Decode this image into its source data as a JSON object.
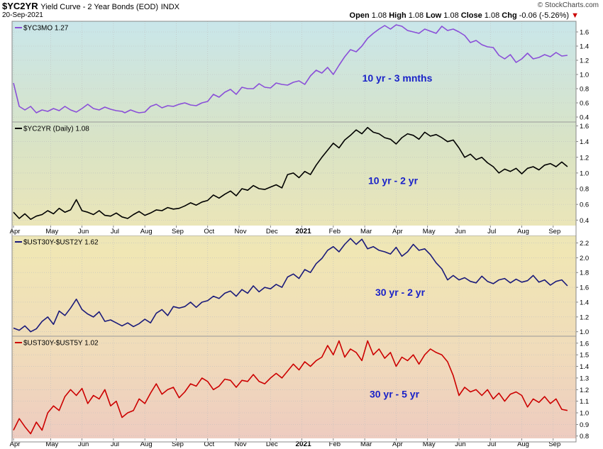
{
  "header": {
    "symbol": "$YC2YR",
    "description": "Yield Curve - 2 Year Bonds (EOD)",
    "exchange": "INDX",
    "date": "20-Sep-2021",
    "brand": "© StockCharts.com",
    "open_label": "Open",
    "open": "1.08",
    "high_label": "High",
    "high": "1.08",
    "low_label": "Low",
    "low": "1.08",
    "close_label": "Close",
    "close": "1.08",
    "chg_label": "Chg",
    "chg": "-0.06 (-5.26%)",
    "chg_arrow": "▼"
  },
  "colors": {
    "yc3mo": "#8a4fd8",
    "yc2yr": "#000000",
    "ust30y2y": "#1a1a7a",
    "ust30y5y": "#cc0000",
    "note": "#1a22c8"
  },
  "chart_data": [
    {
      "type": "line",
      "title": "$YC3MO 1.27",
      "annotation": "10 yr - 3 mnths",
      "yticks": [
        0.4,
        0.6,
        0.8,
        1.0,
        1.2,
        1.4,
        1.6
      ],
      "ylim": [
        0.33,
        1.75
      ],
      "series": [
        {
          "x": [
            0,
            4,
            8,
            12,
            16,
            20,
            24,
            28,
            32,
            36,
            40,
            44,
            48,
            52,
            56,
            60,
            64,
            68,
            72,
            76,
            78,
            82,
            86,
            88,
            92,
            96,
            100,
            104,
            108,
            112,
            116,
            120,
            124,
            128,
            132,
            136,
            140,
            144,
            148,
            152,
            156,
            160,
            164,
            168,
            172,
            176,
            180,
            184,
            188,
            192,
            196,
            200,
            204,
            208,
            212,
            216,
            220,
            224,
            228,
            232,
            236,
            240,
            244,
            248,
            252,
            256,
            260,
            264,
            268,
            272,
            276,
            280,
            284,
            288,
            292,
            296,
            300,
            304,
            308,
            312,
            316,
            320,
            324,
            328,
            332,
            336,
            340,
            344,
            348,
            352,
            356,
            360,
            364,
            368,
            372,
            376,
            380,
            384,
            388
          ],
          "values": [
            0.88,
            0.55,
            0.5,
            0.55,
            0.46,
            0.5,
            0.48,
            0.52,
            0.49,
            0.55,
            0.5,
            0.47,
            0.52,
            0.58,
            0.52,
            0.5,
            0.54,
            0.51,
            0.49,
            0.48,
            0.46,
            0.5,
            0.47,
            0.46,
            0.47,
            0.55,
            0.58,
            0.53,
            0.56,
            0.55,
            0.58,
            0.6,
            0.57,
            0.56,
            0.6,
            0.62,
            0.72,
            0.68,
            0.75,
            0.79,
            0.72,
            0.82,
            0.8,
            0.8,
            0.87,
            0.82,
            0.81,
            0.88,
            0.86,
            0.85,
            0.89,
            0.91,
            0.86,
            0.98,
            1.06,
            1.02,
            1.1,
            1.0,
            1.13,
            1.25,
            1.35,
            1.32,
            1.4,
            1.51,
            1.58,
            1.64,
            1.69,
            1.64,
            1.7,
            1.68,
            1.62,
            1.6,
            1.58,
            1.64,
            1.61,
            1.58,
            1.68,
            1.62,
            1.64,
            1.6,
            1.55,
            1.45,
            1.48,
            1.42,
            1.39,
            1.38,
            1.27,
            1.22,
            1.28,
            1.17,
            1.22,
            1.3,
            1.22,
            1.24,
            1.28,
            1.25,
            1.31,
            1.26,
            1.27
          ]
        }
      ]
    },
    {
      "type": "line",
      "title": "$YC2YR (Daily) 1.08",
      "annotation": "10 yr - 2 yr",
      "yticks": [
        0.4,
        0.6,
        0.8,
        1.0,
        1.2,
        1.4,
        1.6
      ],
      "ylim": [
        0.33,
        1.65
      ],
      "series": [
        {
          "x": [
            0,
            4,
            8,
            12,
            16,
            20,
            24,
            28,
            32,
            36,
            40,
            44,
            48,
            52,
            56,
            60,
            64,
            68,
            72,
            76,
            80,
            84,
            88,
            92,
            96,
            100,
            104,
            108,
            112,
            116,
            120,
            124,
            128,
            132,
            136,
            140,
            144,
            148,
            152,
            156,
            160,
            164,
            168,
            172,
            176,
            180,
            184,
            188,
            192,
            196,
            200,
            204,
            208,
            212,
            216,
            220,
            224,
            228,
            232,
            236,
            240,
            244,
            248,
            252,
            256,
            260,
            264,
            268,
            272,
            276,
            280,
            284,
            288,
            292,
            296,
            300,
            304,
            308,
            312,
            316,
            320,
            324,
            328,
            332,
            336,
            340,
            344,
            348,
            352,
            356,
            360,
            364,
            368,
            372,
            376,
            380,
            384,
            388
          ],
          "values": [
            0.5,
            0.42,
            0.48,
            0.41,
            0.45,
            0.47,
            0.52,
            0.48,
            0.55,
            0.5,
            0.53,
            0.66,
            0.52,
            0.5,
            0.47,
            0.52,
            0.46,
            0.45,
            0.49,
            0.44,
            0.42,
            0.47,
            0.51,
            0.46,
            0.49,
            0.53,
            0.52,
            0.56,
            0.54,
            0.55,
            0.58,
            0.62,
            0.59,
            0.63,
            0.65,
            0.72,
            0.68,
            0.73,
            0.77,
            0.71,
            0.8,
            0.78,
            0.84,
            0.8,
            0.79,
            0.82,
            0.85,
            0.81,
            0.98,
            1.0,
            0.94,
            1.02,
            0.98,
            1.1,
            1.2,
            1.29,
            1.38,
            1.32,
            1.42,
            1.48,
            1.55,
            1.5,
            1.58,
            1.52,
            1.5,
            1.45,
            1.43,
            1.37,
            1.45,
            1.5,
            1.48,
            1.43,
            1.52,
            1.47,
            1.49,
            1.45,
            1.4,
            1.42,
            1.32,
            1.2,
            1.24,
            1.17,
            1.2,
            1.13,
            1.08,
            1.0,
            1.05,
            1.02,
            1.06,
            0.99,
            1.06,
            1.08,
            1.04,
            1.1,
            1.12,
            1.08,
            1.14,
            1.08
          ]
        }
      ]
    },
    {
      "type": "line",
      "title": "$UST30Y-$UST2Y 1.62",
      "annotation": "30 yr - 2 yr",
      "yticks": [
        1.0,
        1.2,
        1.4,
        1.6,
        1.8,
        2.0,
        2.2
      ],
      "ylim": [
        0.94,
        2.3
      ],
      "series": [
        {
          "x": [
            0,
            4,
            8,
            12,
            16,
            20,
            24,
            28,
            32,
            36,
            40,
            44,
            48,
            52,
            56,
            60,
            64,
            68,
            72,
            76,
            80,
            84,
            88,
            92,
            96,
            100,
            104,
            108,
            112,
            116,
            120,
            124,
            128,
            132,
            136,
            140,
            144,
            148,
            152,
            156,
            160,
            164,
            168,
            172,
            176,
            180,
            184,
            188,
            192,
            196,
            200,
            204,
            208,
            212,
            216,
            220,
            224,
            228,
            232,
            236,
            240,
            244,
            248,
            252,
            256,
            260,
            264,
            268,
            272,
            276,
            280,
            284,
            288,
            292,
            296,
            300,
            304,
            308,
            312,
            316,
            320,
            324,
            328,
            332,
            336,
            340,
            344,
            348,
            352,
            356,
            360,
            364,
            368,
            372,
            376,
            380,
            384,
            388
          ],
          "values": [
            1.05,
            1.02,
            1.08,
            1.0,
            1.04,
            1.14,
            1.2,
            1.1,
            1.28,
            1.22,
            1.32,
            1.44,
            1.3,
            1.24,
            1.2,
            1.27,
            1.14,
            1.16,
            1.12,
            1.08,
            1.12,
            1.07,
            1.11,
            1.17,
            1.12,
            1.25,
            1.3,
            1.22,
            1.34,
            1.32,
            1.34,
            1.4,
            1.33,
            1.4,
            1.42,
            1.48,
            1.45,
            1.52,
            1.55,
            1.48,
            1.57,
            1.52,
            1.62,
            1.54,
            1.6,
            1.58,
            1.64,
            1.6,
            1.74,
            1.78,
            1.72,
            1.84,
            1.8,
            1.92,
            1.99,
            2.1,
            2.15,
            2.08,
            2.18,
            2.26,
            2.18,
            2.25,
            2.12,
            2.15,
            2.1,
            2.08,
            2.05,
            2.14,
            2.02,
            2.08,
            2.18,
            2.1,
            2.12,
            2.04,
            1.93,
            1.85,
            1.7,
            1.76,
            1.7,
            1.73,
            1.68,
            1.66,
            1.75,
            1.68,
            1.65,
            1.7,
            1.72,
            1.66,
            1.71,
            1.67,
            1.69,
            1.76,
            1.67,
            1.7,
            1.63,
            1.68,
            1.7,
            1.62
          ]
        }
      ]
    },
    {
      "type": "line",
      "title": "$UST30Y-$UST5Y 1.02",
      "annotation": "30 yr - 5 yr",
      "yticks": [
        0.8,
        0.9,
        1.0,
        1.1,
        1.2,
        1.3,
        1.4,
        1.5,
        1.6
      ],
      "ylim": [
        0.78,
        1.66
      ],
      "series": [
        {
          "x": [
            0,
            4,
            8,
            12,
            16,
            20,
            24,
            28,
            32,
            36,
            40,
            44,
            48,
            52,
            56,
            60,
            64,
            68,
            72,
            76,
            80,
            84,
            88,
            92,
            96,
            100,
            104,
            108,
            112,
            116,
            120,
            124,
            128,
            132,
            136,
            140,
            144,
            148,
            152,
            156,
            160,
            164,
            168,
            172,
            176,
            180,
            184,
            188,
            192,
            196,
            200,
            204,
            208,
            212,
            216,
            220,
            224,
            228,
            232,
            236,
            240,
            244,
            248,
            252,
            256,
            260,
            264,
            268,
            272,
            276,
            280,
            284,
            288,
            292,
            296,
            300,
            304,
            308,
            312,
            316,
            320,
            324,
            328,
            332,
            336,
            340,
            344,
            348,
            352,
            356,
            360,
            364,
            368,
            372,
            376,
            380,
            384,
            388
          ],
          "values": [
            0.85,
            0.95,
            0.88,
            0.82,
            0.92,
            0.85,
            1.0,
            1.06,
            1.02,
            1.14,
            1.2,
            1.15,
            1.21,
            1.08,
            1.15,
            1.12,
            1.2,
            1.06,
            1.1,
            0.96,
            1.0,
            1.02,
            1.12,
            1.08,
            1.17,
            1.25,
            1.16,
            1.2,
            1.22,
            1.13,
            1.18,
            1.25,
            1.23,
            1.3,
            1.27,
            1.2,
            1.23,
            1.29,
            1.28,
            1.22,
            1.28,
            1.27,
            1.33,
            1.27,
            1.25,
            1.3,
            1.34,
            1.3,
            1.36,
            1.42,
            1.37,
            1.44,
            1.4,
            1.45,
            1.48,
            1.58,
            1.5,
            1.62,
            1.48,
            1.55,
            1.52,
            1.45,
            1.62,
            1.5,
            1.55,
            1.47,
            1.52,
            1.4,
            1.48,
            1.45,
            1.5,
            1.42,
            1.5,
            1.55,
            1.52,
            1.5,
            1.44,
            1.32,
            1.15,
            1.22,
            1.18,
            1.2,
            1.15,
            1.2,
            1.12,
            1.17,
            1.1,
            1.16,
            1.18,
            1.15,
            1.05,
            1.12,
            1.09,
            1.14,
            1.08,
            1.12,
            1.03,
            1.02
          ]
        }
      ]
    }
  ],
  "x_axis": {
    "ticks": [
      {
        "x": 0,
        "label": "Apr"
      },
      {
        "x": 26,
        "label": "May"
      },
      {
        "x": 48,
        "label": "Jun"
      },
      {
        "x": 70,
        "label": "Jul"
      },
      {
        "x": 92,
        "label": "Aug"
      },
      {
        "x": 114,
        "label": "Sep"
      },
      {
        "x": 136,
        "label": "Oct"
      },
      {
        "x": 158,
        "label": "Nov"
      },
      {
        "x": 180,
        "label": "Dec"
      },
      {
        "x": 202,
        "label": "2021",
        "bold": true
      },
      {
        "x": 224,
        "label": "Feb"
      },
      {
        "x": 246,
        "label": "Mar"
      },
      {
        "x": 268,
        "label": "Apr"
      },
      {
        "x": 290,
        "label": "May"
      },
      {
        "x": 312,
        "label": "Jun"
      },
      {
        "x": 334,
        "label": "Jul"
      },
      {
        "x": 356,
        "label": "Aug"
      },
      {
        "x": 378,
        "label": "Sep"
      }
    ],
    "domain": [
      -1,
      394
    ]
  }
}
